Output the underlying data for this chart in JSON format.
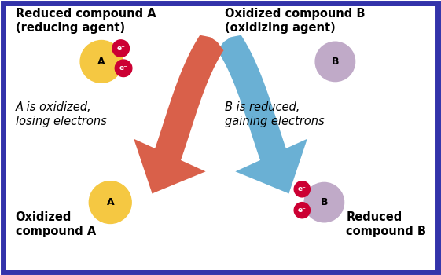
{
  "bg_color": "#ffffff",
  "border_color": "#3333aa",
  "border_lw": 5,
  "top_left_text": "Reduced compound A\n(reducing agent)",
  "top_right_text": "Oxidized compound B\n(oxidizing agent)",
  "mid_left_text": "A is oxidized,\nlosing electrons",
  "mid_right_text": "B is reduced,\ngaining electrons",
  "bot_left_text": "Oxidized\ncompound A",
  "bot_right_text": "Reduced\ncompound B",
  "label_A": "A",
  "label_B": "B",
  "label_e": "e⁻",
  "color_A_ball": "#f5c842",
  "color_B_ball": "#c0aac8",
  "color_e_ball": "#cc0033",
  "color_arrow_red": "#d9604a",
  "color_arrow_blue": "#6ab0d4",
  "text_color": "#000000",
  "text_color_white": "#ffffff",
  "fontsize_main": 10.5,
  "fontsize_label": 9,
  "fontsize_e": 6.5
}
